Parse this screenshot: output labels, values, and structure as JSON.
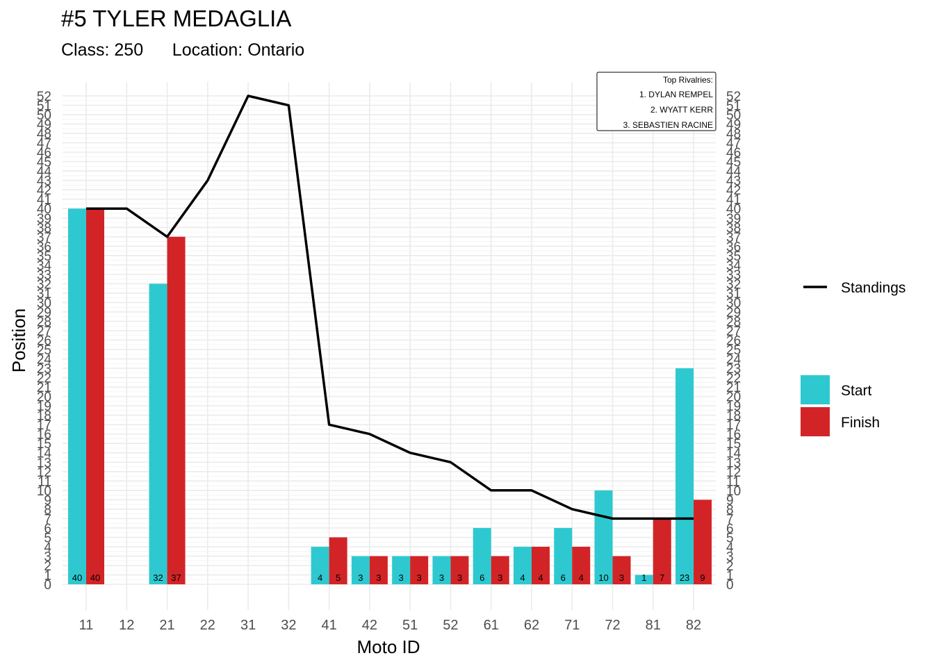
{
  "header": {
    "title": "#5 TYLER MEDAGLIA",
    "subtitle": "Class: 250      Location: Ontario"
  },
  "rivalries": {
    "heading": "Top Rivalries:",
    "items": [
      "1. DYLAN REMPEL",
      "2. WYATT KERR",
      "3. SEBASTIEN RACINE"
    ]
  },
  "colors": {
    "start": "#2ec9d0",
    "finish": "#d22427",
    "line": "#000000",
    "grid": "#ebebeb"
  },
  "chart_data": {
    "type": "bar",
    "xlabel": "Moto ID",
    "ylabel": "Position",
    "ylim": [
      0,
      52
    ],
    "categories": [
      "11",
      "12",
      "21",
      "22",
      "31",
      "32",
      "41",
      "42",
      "51",
      "52",
      "61",
      "62",
      "71",
      "72",
      "81",
      "82"
    ],
    "series": [
      {
        "name": "Start",
        "kind": "bar",
        "values": [
          40,
          null,
          32,
          null,
          null,
          null,
          4,
          3,
          3,
          3,
          6,
          4,
          6,
          10,
          1,
          23
        ]
      },
      {
        "name": "Finish",
        "kind": "bar",
        "values": [
          40,
          null,
          37,
          null,
          null,
          null,
          5,
          3,
          3,
          3,
          3,
          4,
          4,
          3,
          7,
          9
        ]
      },
      {
        "name": "Standings",
        "kind": "line",
        "values": [
          40,
          40,
          37,
          43,
          52,
          51,
          17,
          16,
          14,
          13,
          10,
          10,
          8,
          7,
          7,
          7
        ]
      }
    ],
    "grid": true,
    "legend_position": "right"
  }
}
